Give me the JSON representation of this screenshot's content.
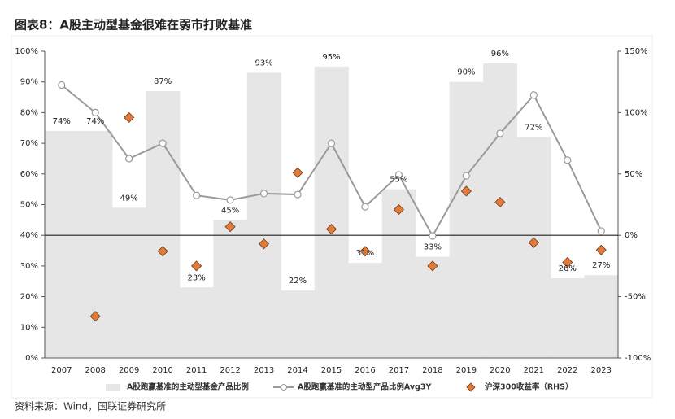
{
  "chart_data": {
    "type": "combo",
    "title": "图表8：A股主动型基金很难在弱市打败基准",
    "source": "资料来源：Wind，国联证券研究所",
    "categories": [
      "2007",
      "2008",
      "2009",
      "2010",
      "2011",
      "2012",
      "2013",
      "2014",
      "2015",
      "2016",
      "2017",
      "2018",
      "2019",
      "2020",
      "2021",
      "2022",
      "2023"
    ],
    "series": [
      {
        "name": "A股跑赢基准的主动型基金产品比例",
        "type": "bar",
        "color": "#e6e6e6",
        "axis": "y",
        "values": [
          74,
          74,
          49,
          87,
          23,
          45,
          93,
          22,
          95,
          31,
          55,
          33,
          90,
          96,
          72,
          26,
          27
        ],
        "value_labels": [
          "74%",
          "74%",
          "49%",
          "87%",
          "23%",
          "45%",
          "93%",
          "22%",
          "95%",
          "31%",
          "55%",
          "33%",
          "90%",
          "96%",
          "72%",
          "26%",
          "27%"
        ]
      },
      {
        "name": "A股跑赢基准的主动型产品比例Avg3Y",
        "type": "line",
        "color": "#9a9a9a",
        "axis": "y",
        "values": [
          89,
          80,
          65,
          70,
          53,
          51.5,
          53.6,
          53.3,
          70,
          49.3,
          59.7,
          39.8,
          59.4,
          73.2,
          85.7,
          64.5,
          41.4
        ]
      },
      {
        "name": "沪深300收益率（RHS）",
        "type": "scatter",
        "color": "#e07b39",
        "axis": "y2",
        "values": [
          null,
          -66,
          96,
          -13,
          -25,
          7,
          -7,
          51,
          5,
          -13,
          21,
          -25,
          36,
          27,
          -6,
          -22,
          -12
        ]
      }
    ],
    "ylim": [
      0,
      100
    ],
    "yticks": [
      {
        "value": 0,
        "label": "0%"
      },
      {
        "value": 10,
        "label": "10%"
      },
      {
        "value": 20,
        "label": "20%"
      },
      {
        "value": 30,
        "label": "30%"
      },
      {
        "value": 40,
        "label": "40%"
      },
      {
        "value": 50,
        "label": "50%"
      },
      {
        "value": 60,
        "label": "60%"
      },
      {
        "value": 70,
        "label": "70%"
      },
      {
        "value": 80,
        "label": "80%"
      },
      {
        "value": 90,
        "label": "90%"
      },
      {
        "value": 100,
        "label": "100%"
      }
    ],
    "y2lim": [
      -100,
      150
    ],
    "y2ticks": [
      {
        "value": -100,
        "label": "-100%"
      },
      {
        "value": -50,
        "label": "-50%"
      },
      {
        "value": 0,
        "label": "0%"
      },
      {
        "value": 50,
        "label": "50%"
      },
      {
        "value": 100,
        "label": "100%"
      },
      {
        "value": 150,
        "label": "150%"
      }
    ]
  }
}
